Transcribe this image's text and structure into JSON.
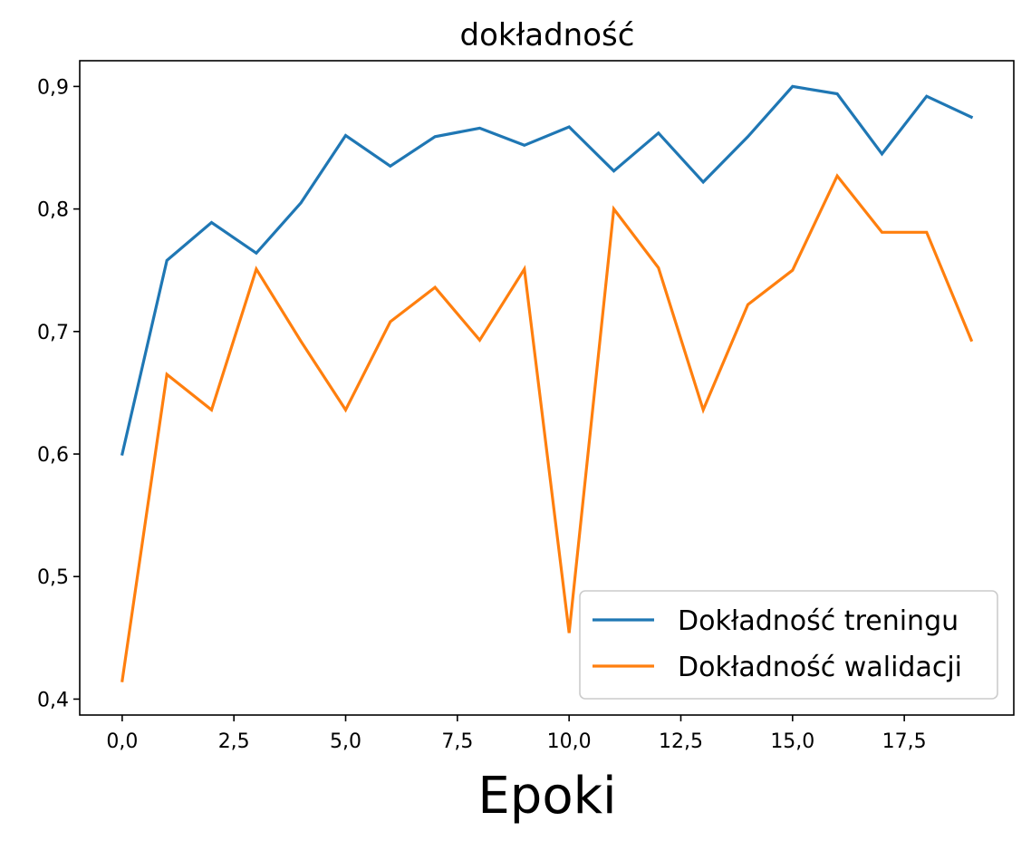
{
  "chart_data": {
    "type": "line",
    "title": "dokładność",
    "xlabel": "Epoki",
    "ylabel": "",
    "xlim": [
      -0.95,
      19.95
    ],
    "ylim": [
      0.387,
      0.921
    ],
    "x_ticks": [
      0,
      2.5,
      5,
      7.5,
      10,
      12.5,
      15,
      17.5
    ],
    "x_tick_labels": [
      "0,0",
      "2,5",
      "5,0",
      "7,5",
      "10,0",
      "12,5",
      "15,0",
      "17,5"
    ],
    "y_ticks": [
      0.4,
      0.5,
      0.6,
      0.7,
      0.8,
      0.9
    ],
    "y_tick_labels": [
      "0,4",
      "0,5",
      "0,6",
      "0,7",
      "0,8",
      "0,9"
    ],
    "grid": false,
    "legend_position": "bottom-right",
    "x": [
      0,
      1,
      2,
      3,
      4,
      5,
      6,
      7,
      8,
      9,
      10,
      11,
      12,
      13,
      14,
      15,
      16,
      17,
      18,
      19
    ],
    "series": [
      {
        "name": "Dokładność treningu",
        "color": "#1f77b4",
        "values": [
          0.6,
          0.758,
          0.789,
          0.764,
          0.805,
          0.86,
          0.835,
          0.859,
          0.866,
          0.852,
          0.867,
          0.831,
          0.862,
          0.822,
          0.859,
          0.9,
          0.894,
          0.845,
          0.892,
          0.875
        ]
      },
      {
        "name": "Dokładność walidacji",
        "color": "#ff7f0e",
        "values": [
          0.415,
          0.665,
          0.636,
          0.751,
          0.692,
          0.636,
          0.708,
          0.736,
          0.693,
          0.751,
          0.454,
          0.8,
          0.752,
          0.636,
          0.722,
          0.75,
          0.827,
          0.781,
          0.781,
          0.693
        ]
      }
    ]
  }
}
